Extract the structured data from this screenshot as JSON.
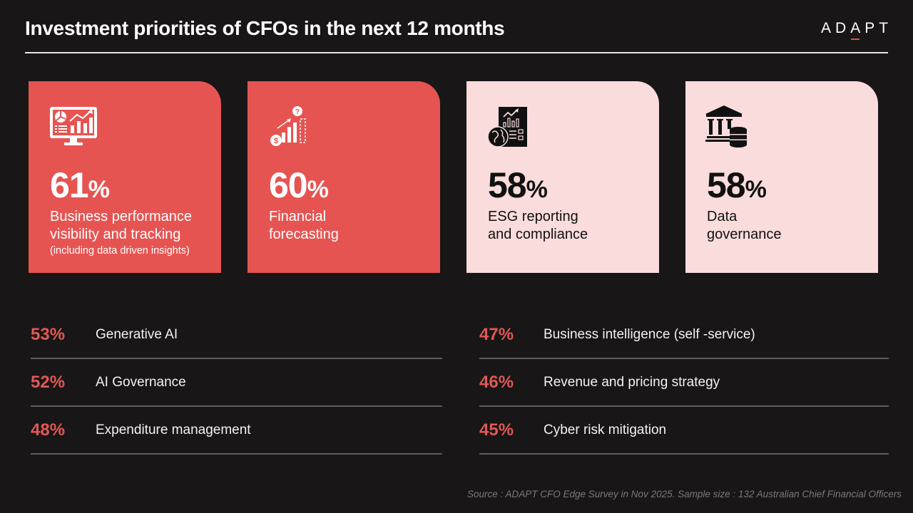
{
  "header": {
    "title": "Investment priorities of CFOs in the next 12 months",
    "logo": {
      "pre": "AD",
      "accent_letter": "A",
      "post": "PT"
    }
  },
  "colors": {
    "background": "#181617",
    "accent_red": "#e65452",
    "light_pink": "#fadcdc",
    "list_percent": "#e15755"
  },
  "top_cards": [
    {
      "percent": "61",
      "sign": "%",
      "label_lines": [
        "Business performance",
        "visibility and tracking"
      ],
      "sublabel": "(including data driven insights)",
      "icon": "monitor-analytics-icon",
      "style": "red"
    },
    {
      "percent": "60",
      "sign": "%",
      "label_lines": [
        "Financial",
        "forecasting"
      ],
      "sublabel": "",
      "icon": "forecast-growth-icon",
      "style": "red"
    },
    {
      "percent": "58",
      "sign": "%",
      "label_lines": [
        "ESG reporting",
        "and compliance"
      ],
      "sublabel": "",
      "icon": "esg-report-icon",
      "style": "pink"
    },
    {
      "percent": "58",
      "sign": "%",
      "label_lines": [
        "Data",
        "governance"
      ],
      "sublabel": "",
      "icon": "bank-database-icon",
      "style": "pink"
    }
  ],
  "list_left": [
    {
      "percent": "53%",
      "label": "Generative AI"
    },
    {
      "percent": "52%",
      "label": "AI Governance"
    },
    {
      "percent": "48%",
      "label": "Expenditure management"
    }
  ],
  "list_right": [
    {
      "percent": "47%",
      "label": "Business intelligence (self -service)"
    },
    {
      "percent": "46%",
      "label": "Revenue and pricing strategy"
    },
    {
      "percent": "45%",
      "label": "Cyber risk mitigation"
    }
  ],
  "footer": {
    "source": "Source : ADAPT CFO Edge Survey in Nov 2025. Sample size : 132 Australian Chief Financial Officers"
  }
}
